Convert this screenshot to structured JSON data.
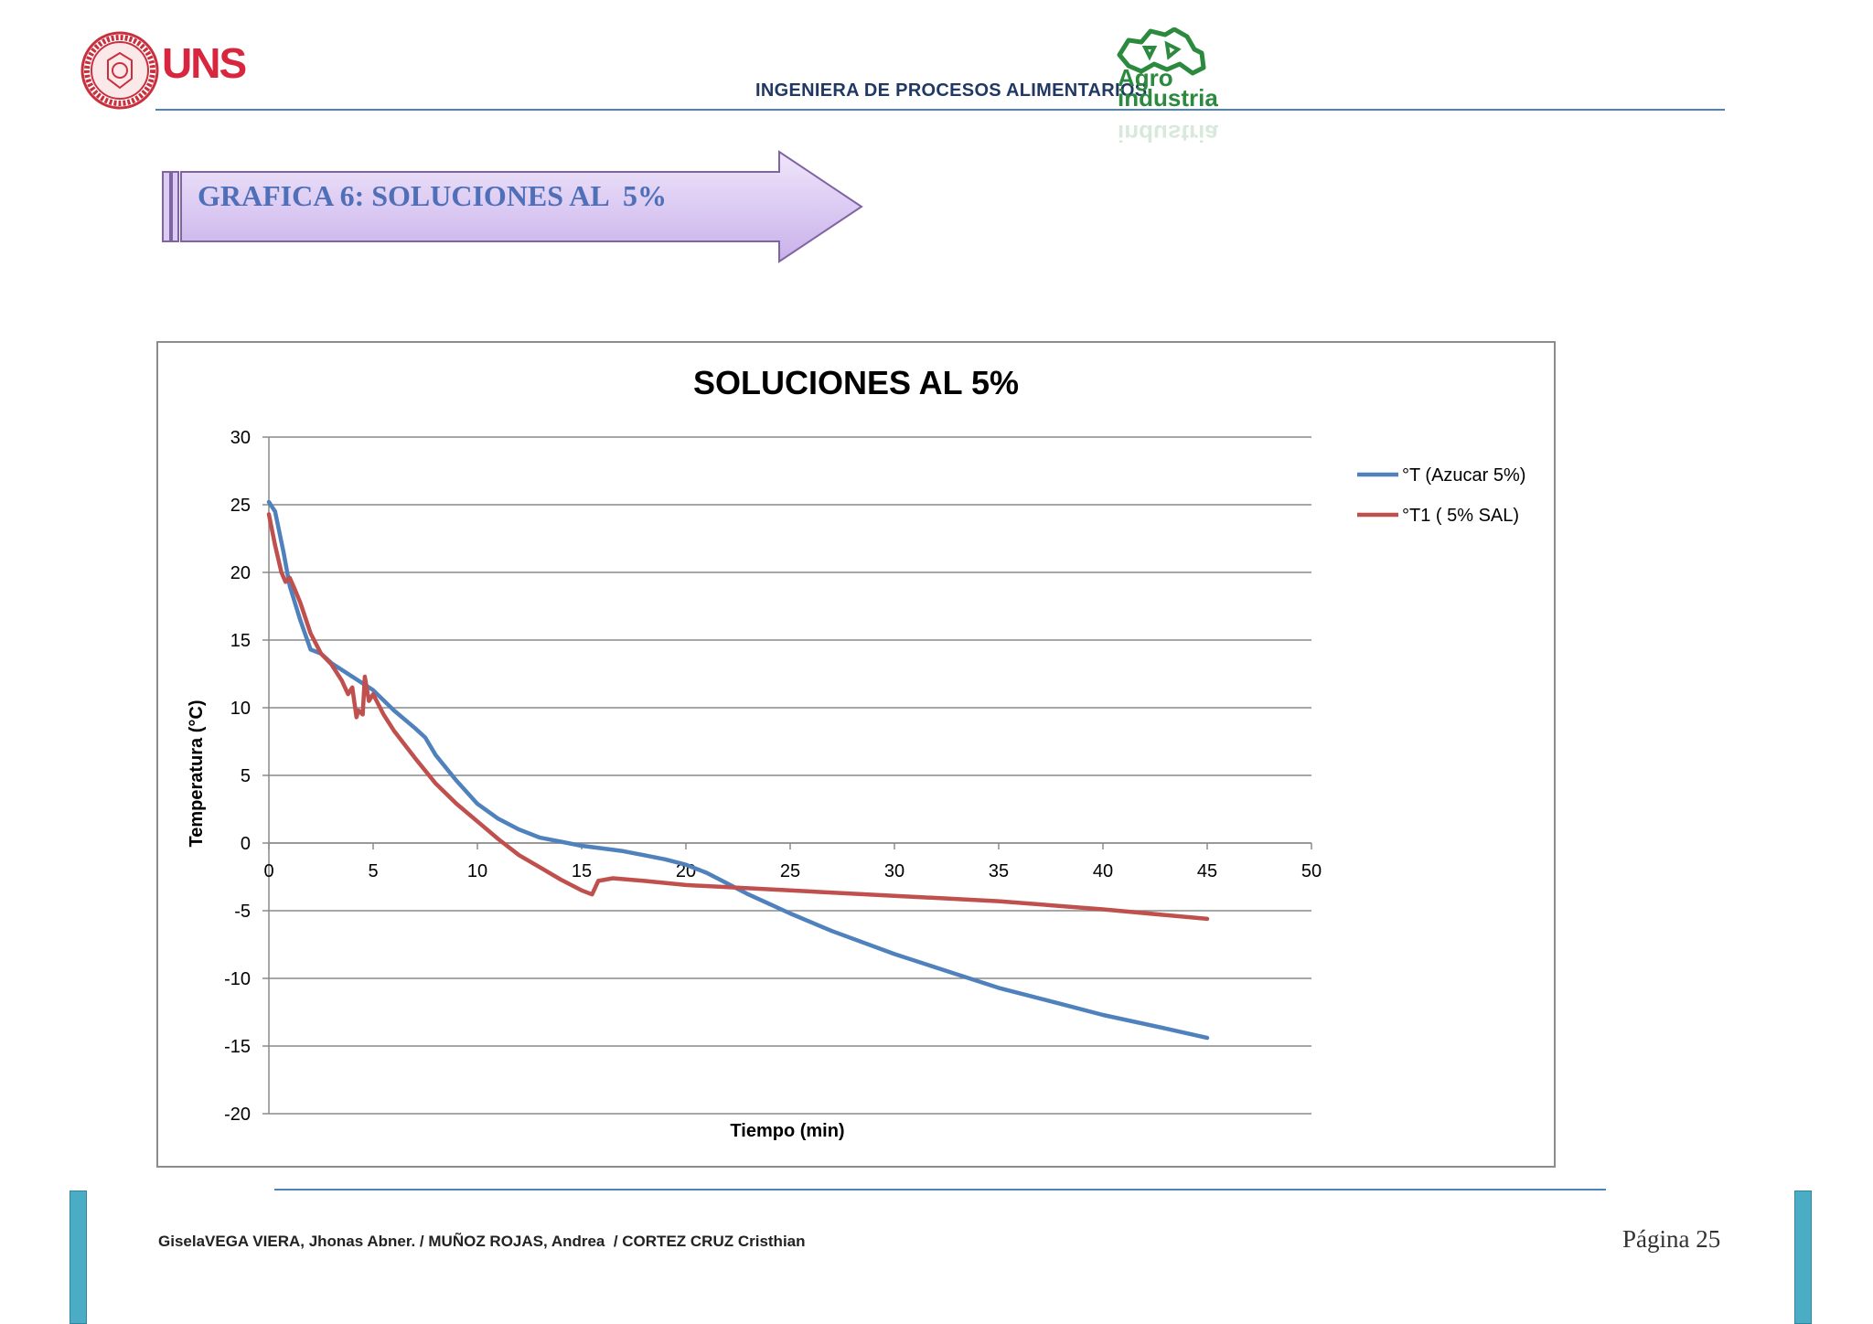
{
  "header": {
    "logo_left_text": "UNS",
    "title": "INGENIERA DE PROCESOS ALIMENTARIOS",
    "logo_right_line1": "Agro",
    "logo_right_line2": "industria",
    "logo_right_reflection": "industria"
  },
  "banner": {
    "title": "GRAFICA 6: SOLUCIONES AL  5%"
  },
  "chart_data": {
    "type": "line",
    "title": "SOLUCIONES AL 5%",
    "xlabel": "Tiempo (min)",
    "ylabel": "Temperatura (°C)",
    "xlim": [
      0,
      50
    ],
    "ylim": [
      -20,
      30
    ],
    "x_ticks": [
      0,
      5,
      10,
      15,
      20,
      25,
      30,
      35,
      40,
      45,
      50
    ],
    "y_ticks": [
      30,
      25,
      20,
      15,
      10,
      5,
      0,
      -5,
      -10,
      -15,
      -20
    ],
    "grid": true,
    "legend_position": "right",
    "series": [
      {
        "name": "°T (Azucar 5%)",
        "color": "#4f81bd",
        "x": [
          0,
          0.3,
          0.7,
          1.0,
          1.5,
          2.0,
          2.5,
          3.0,
          4.0,
          5.0,
          6.0,
          7.0,
          7.5,
          8.0,
          9.0,
          10.0,
          11.0,
          12.0,
          13.0,
          14.0,
          15.0,
          16.0,
          17.0,
          18.0,
          19.0,
          20.0,
          21.0,
          22.0,
          23.0,
          24.0,
          25.0,
          27.0,
          30.0,
          33.0,
          35.0,
          38.0,
          40.0,
          43.0,
          45.0
        ],
        "y": [
          25.2,
          24.5,
          21.5,
          19.0,
          16.5,
          14.3,
          14.0,
          13.3,
          12.3,
          11.3,
          9.8,
          8.5,
          7.8,
          6.5,
          4.6,
          2.9,
          1.8,
          1.0,
          0.4,
          0.1,
          -0.2,
          -0.4,
          -0.6,
          -0.9,
          -1.2,
          -1.6,
          -2.2,
          -3.0,
          -3.8,
          -4.5,
          -5.2,
          -6.5,
          -8.2,
          -9.7,
          -10.7,
          -11.9,
          -12.7,
          -13.7,
          -14.4
        ]
      },
      {
        "name": "°T1 ( 5% SAL)",
        "color": "#c0504d",
        "x": [
          0,
          0.3,
          0.6,
          0.8,
          1.0,
          1.2,
          1.5,
          2.0,
          2.5,
          3.0,
          3.5,
          3.8,
          4.0,
          4.2,
          4.3,
          4.5,
          4.6,
          4.8,
          5.0,
          5.5,
          6.0,
          7.0,
          8.0,
          9.0,
          10.0,
          11.0,
          12.0,
          13.0,
          14.0,
          15.0,
          15.5,
          15.8,
          16.5,
          18.0,
          20.0,
          25.0,
          30.0,
          35.0,
          40.0,
          45.0
        ],
        "y": [
          24.3,
          22.0,
          20.0,
          19.3,
          19.6,
          18.9,
          17.8,
          15.5,
          14.0,
          13.2,
          12.0,
          11.0,
          11.5,
          9.3,
          9.8,
          9.5,
          12.3,
          10.5,
          11.0,
          9.5,
          8.3,
          6.3,
          4.4,
          2.9,
          1.6,
          0.3,
          -0.9,
          -1.8,
          -2.7,
          -3.5,
          -3.8,
          -2.8,
          -2.6,
          -2.8,
          -3.1,
          -3.5,
          -3.9,
          -4.3,
          -4.9,
          -5.6
        ]
      }
    ]
  },
  "footer": {
    "authors": "GiselaVEGA VIERA, Jhonas Abner. / MUÑOZ ROJAS, Andrea  / CORTEZ CRUZ Cristhian",
    "page": "Página 25"
  }
}
